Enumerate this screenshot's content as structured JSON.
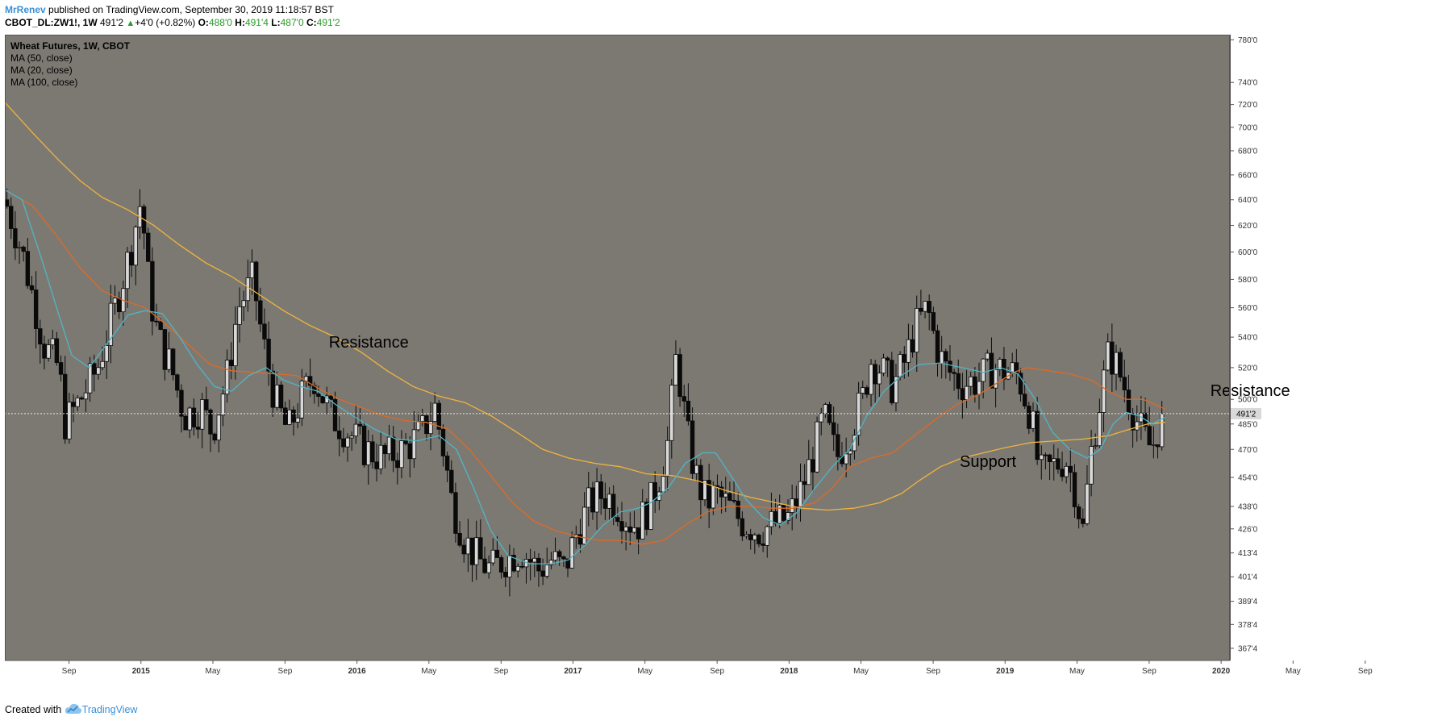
{
  "header": {
    "author": "MrRenev",
    "published_text": "published on TradingView.com, September 30, 2019 11:18:57 BST"
  },
  "quote": {
    "symbol": "CBOT_DL:ZW1!, 1W",
    "price": "491'2",
    "change": "+4'0 (+0.82%)",
    "o_label": "O:",
    "o": "488'0",
    "h_label": "H:",
    "h": "491'4",
    "l_label": "L:",
    "l": "487'0",
    "c_label": "C:",
    "c": "491'2"
  },
  "legend": {
    "title": "Wheat Futures, 1W, CBOT",
    "items": [
      "MA (50, close)",
      "MA (20, close)",
      "MA (100, close)"
    ]
  },
  "footer": {
    "created_with": "Created with",
    "brand": "TradingView"
  },
  "colors": {
    "plot_bg": "#7c7973",
    "candle_up": "#d8d8d8",
    "candle_down": "#0a0a0a",
    "ma20": "#4fb6c6",
    "ma50": "#e06a22",
    "ma100": "#f0b43c",
    "price_line": "#e8e8e8",
    "brand": "#3a8fd6",
    "up_text": "#2a9a2a"
  },
  "chart_data": {
    "type": "candlestick",
    "title": "Wheat Futures, 1W, CBOT",
    "interval": "1W",
    "last_price": 491.25,
    "last_price_label": "491'2",
    "y_scale": "log",
    "ylim": [
      362,
      785
    ],
    "y_ticks": [
      {
        "v": 780,
        "label": "780'0"
      },
      {
        "v": 740,
        "label": "740'0"
      },
      {
        "v": 720,
        "label": "720'0"
      },
      {
        "v": 700,
        "label": "700'0"
      },
      {
        "v": 680,
        "label": "680'0"
      },
      {
        "v": 660,
        "label": "660'0"
      },
      {
        "v": 640,
        "label": "640'0"
      },
      {
        "v": 620,
        "label": "620'0"
      },
      {
        "v": 600,
        "label": "600'0"
      },
      {
        "v": 580,
        "label": "580'0"
      },
      {
        "v": 560,
        "label": "560'0"
      },
      {
        "v": 540,
        "label": "540'0"
      },
      {
        "v": 520,
        "label": "520'0"
      },
      {
        "v": 500,
        "label": "500'0"
      },
      {
        "v": 485,
        "label": "485'0"
      },
      {
        "v": 470,
        "label": "470'0"
      },
      {
        "v": 454,
        "label": "454'0"
      },
      {
        "v": 438,
        "label": "438'0"
      },
      {
        "v": 426,
        "label": "426'0"
      },
      {
        "v": 413.5,
        "label": "413'4"
      },
      {
        "v": 401.5,
        "label": "401'4"
      },
      {
        "v": 389.5,
        "label": "389'4"
      },
      {
        "v": 378.5,
        "label": "378'4"
      },
      {
        "v": 367.5,
        "label": "367'4"
      }
    ],
    "x_ticks": [
      {
        "t": 2014.667,
        "label": "Sep",
        "bold": false
      },
      {
        "t": 2015.0,
        "label": "2015",
        "bold": true
      },
      {
        "t": 2015.333,
        "label": "May",
        "bold": false
      },
      {
        "t": 2015.667,
        "label": "Sep",
        "bold": false
      },
      {
        "t": 2016.0,
        "label": "2016",
        "bold": true
      },
      {
        "t": 2016.333,
        "label": "May",
        "bold": false
      },
      {
        "t": 2016.667,
        "label": "Sep",
        "bold": false
      },
      {
        "t": 2017.0,
        "label": "2017",
        "bold": true
      },
      {
        "t": 2017.333,
        "label": "May",
        "bold": false
      },
      {
        "t": 2017.667,
        "label": "Sep",
        "bold": false
      },
      {
        "t": 2018.0,
        "label": "2018",
        "bold": true
      },
      {
        "t": 2018.333,
        "label": "May",
        "bold": false
      },
      {
        "t": 2018.667,
        "label": "Sep",
        "bold": false
      },
      {
        "t": 2019.0,
        "label": "2019",
        "bold": true
      },
      {
        "t": 2019.333,
        "label": "May",
        "bold": false
      },
      {
        "t": 2019.667,
        "label": "Sep",
        "bold": false
      },
      {
        "t": 2020.0,
        "label": "2020",
        "bold": true
      },
      {
        "t": 2020.333,
        "label": "May",
        "bold": false
      },
      {
        "t": 2020.667,
        "label": "Sep",
        "bold": false
      }
    ],
    "xlim": [
      2014.37,
      2021.0
    ],
    "price_path": [
      [
        2014.37,
        640
      ],
      [
        2014.45,
        600
      ],
      [
        2014.55,
        535
      ],
      [
        2014.62,
        520
      ],
      [
        2014.65,
        485
      ],
      [
        2014.72,
        500
      ],
      [
        2014.8,
        520
      ],
      [
        2014.88,
        560
      ],
      [
        2014.95,
        600
      ],
      [
        2015.0,
        640
      ],
      [
        2015.04,
        570
      ],
      [
        2015.08,
        540
      ],
      [
        2015.14,
        520
      ],
      [
        2015.2,
        490
      ],
      [
        2015.28,
        495
      ],
      [
        2015.33,
        480
      ],
      [
        2015.4,
        515
      ],
      [
        2015.45,
        560
      ],
      [
        2015.52,
        580
      ],
      [
        2015.56,
        540
      ],
      [
        2015.62,
        500
      ],
      [
        2015.68,
        480
      ],
      [
        2015.74,
        500
      ],
      [
        2015.8,
        515
      ],
      [
        2015.88,
        490
      ],
      [
        2015.96,
        480
      ],
      [
        2016.04,
        470
      ],
      [
        2016.12,
        465
      ],
      [
        2016.22,
        470
      ],
      [
        2016.3,
        480
      ],
      [
        2016.36,
        495
      ],
      [
        2016.4,
        470
      ],
      [
        2016.44,
        440
      ],
      [
        2016.5,
        420
      ],
      [
        2016.56,
        410
      ],
      [
        2016.62,
        405
      ],
      [
        2016.68,
        410
      ],
      [
        2016.76,
        415
      ],
      [
        2016.84,
        405
      ],
      [
        2016.9,
        410
      ],
      [
        2016.96,
        405
      ],
      [
        2017.02,
        425
      ],
      [
        2017.08,
        440
      ],
      [
        2017.14,
        445
      ],
      [
        2017.2,
        440
      ],
      [
        2017.26,
        430
      ],
      [
        2017.3,
        428
      ],
      [
        2017.36,
        440
      ],
      [
        2017.4,
        455
      ],
      [
        2017.44,
        475
      ],
      [
        2017.48,
        530
      ],
      [
        2017.5,
        505
      ],
      [
        2017.54,
        470
      ],
      [
        2017.58,
        450
      ],
      [
        2017.62,
        440
      ],
      [
        2017.66,
        445
      ],
      [
        2017.72,
        438
      ],
      [
        2017.78,
        430
      ],
      [
        2017.86,
        425
      ],
      [
        2017.92,
        428
      ],
      [
        2018.0,
        432
      ],
      [
        2018.06,
        448
      ],
      [
        2018.12,
        470
      ],
      [
        2018.16,
        490
      ],
      [
        2018.22,
        465
      ],
      [
        2018.28,
        480
      ],
      [
        2018.34,
        500
      ],
      [
        2018.38,
        525
      ],
      [
        2018.42,
        520
      ],
      [
        2018.48,
        508
      ],
      [
        2018.54,
        525
      ],
      [
        2018.58,
        545
      ],
      [
        2018.64,
        560
      ],
      [
        2018.68,
        535
      ],
      [
        2018.72,
        520
      ],
      [
        2018.8,
        510
      ],
      [
        2018.88,
        512
      ],
      [
        2018.94,
        520
      ],
      [
        2019.0,
        518
      ],
      [
        2019.06,
        515
      ],
      [
        2019.12,
        490
      ],
      [
        2019.16,
        455
      ],
      [
        2019.22,
        460
      ],
      [
        2019.28,
        465
      ],
      [
        2019.32,
        450
      ],
      [
        2019.36,
        425
      ],
      [
        2019.4,
        470
      ],
      [
        2019.44,
        500
      ],
      [
        2019.48,
        530
      ],
      [
        2019.52,
        520
      ],
      [
        2019.56,
        505
      ],
      [
        2019.6,
        490
      ],
      [
        2019.64,
        478
      ],
      [
        2019.68,
        470
      ],
      [
        2019.7,
        480
      ],
      [
        2019.74,
        491.25
      ]
    ],
    "ma20_path": [
      [
        2014.37,
        648
      ],
      [
        2014.45,
        640
      ],
      [
        2014.55,
        590
      ],
      [
        2014.62,
        555
      ],
      [
        2014.68,
        528
      ],
      [
        2014.76,
        520
      ],
      [
        2014.84,
        535
      ],
      [
        2014.94,
        555
      ],
      [
        2015.02,
        558
      ],
      [
        2015.1,
        556
      ],
      [
        2015.18,
        540
      ],
      [
        2015.26,
        522
      ],
      [
        2015.34,
        508
      ],
      [
        2015.42,
        505
      ],
      [
        2015.5,
        515
      ],
      [
        2015.58,
        520
      ],
      [
        2015.66,
        512
      ],
      [
        2015.74,
        508
      ],
      [
        2015.82,
        505
      ],
      [
        2015.9,
        497
      ],
      [
        2015.98,
        490
      ],
      [
        2016.08,
        482
      ],
      [
        2016.18,
        476
      ],
      [
        2016.28,
        475
      ],
      [
        2016.38,
        478
      ],
      [
        2016.46,
        470
      ],
      [
        2016.54,
        448
      ],
      [
        2016.62,
        425
      ],
      [
        2016.7,
        412
      ],
      [
        2016.8,
        408
      ],
      [
        2016.9,
        408
      ],
      [
        2016.98,
        410
      ],
      [
        2017.06,
        418
      ],
      [
        2017.14,
        428
      ],
      [
        2017.22,
        435
      ],
      [
        2017.3,
        437
      ],
      [
        2017.36,
        440
      ],
      [
        2017.44,
        448
      ],
      [
        2017.52,
        462
      ],
      [
        2017.6,
        468
      ],
      [
        2017.66,
        468
      ],
      [
        2017.72,
        457
      ],
      [
        2017.8,
        442
      ],
      [
        2017.88,
        432
      ],
      [
        2017.96,
        428
      ],
      [
        2018.04,
        435
      ],
      [
        2018.12,
        448
      ],
      [
        2018.2,
        460
      ],
      [
        2018.28,
        470
      ],
      [
        2018.36,
        490
      ],
      [
        2018.44,
        505
      ],
      [
        2018.52,
        515
      ],
      [
        2018.6,
        522
      ],
      [
        2018.7,
        523
      ],
      [
        2018.8,
        520
      ],
      [
        2018.9,
        517
      ],
      [
        2018.98,
        520
      ],
      [
        2019.06,
        516
      ],
      [
        2019.14,
        500
      ],
      [
        2019.22,
        480
      ],
      [
        2019.3,
        470
      ],
      [
        2019.38,
        465
      ],
      [
        2019.44,
        470
      ],
      [
        2019.5,
        485
      ],
      [
        2019.56,
        492
      ],
      [
        2019.62,
        490
      ],
      [
        2019.68,
        485
      ],
      [
        2019.74,
        489
      ]
    ],
    "ma50_path": [
      [
        2014.37,
        648
      ],
      [
        2014.5,
        635
      ],
      [
        2014.62,
        610
      ],
      [
        2014.72,
        588
      ],
      [
        2014.82,
        572
      ],
      [
        2014.92,
        565
      ],
      [
        2015.02,
        560
      ],
      [
        2015.12,
        548
      ],
      [
        2015.22,
        535
      ],
      [
        2015.32,
        522
      ],
      [
        2015.42,
        518
      ],
      [
        2015.52,
        517
      ],
      [
        2015.62,
        516
      ],
      [
        2015.72,
        515
      ],
      [
        2015.82,
        507
      ],
      [
        2015.92,
        500
      ],
      [
        2016.02,
        495
      ],
      [
        2016.12,
        490
      ],
      [
        2016.22,
        487
      ],
      [
        2016.32,
        486
      ],
      [
        2016.42,
        482
      ],
      [
        2016.52,
        470
      ],
      [
        2016.62,
        455
      ],
      [
        2016.72,
        440
      ],
      [
        2016.82,
        430
      ],
      [
        2016.92,
        425
      ],
      [
        2017.02,
        422
      ],
      [
        2017.12,
        420
      ],
      [
        2017.22,
        420
      ],
      [
        2017.32,
        418
      ],
      [
        2017.42,
        420
      ],
      [
        2017.52,
        428
      ],
      [
        2017.62,
        435
      ],
      [
        2017.72,
        438
      ],
      [
        2017.82,
        438
      ],
      [
        2017.92,
        437
      ],
      [
        2018.02,
        437
      ],
      [
        2018.12,
        440
      ],
      [
        2018.2,
        448
      ],
      [
        2018.28,
        460
      ],
      [
        2018.38,
        465
      ],
      [
        2018.48,
        468
      ],
      [
        2018.58,
        478
      ],
      [
        2018.68,
        488
      ],
      [
        2018.78,
        497
      ],
      [
        2018.88,
        503
      ],
      [
        2018.96,
        510
      ],
      [
        2019.04,
        517
      ],
      [
        2019.1,
        520
      ],
      [
        2019.2,
        518
      ],
      [
        2019.3,
        516
      ],
      [
        2019.4,
        512
      ],
      [
        2019.48,
        505
      ],
      [
        2019.56,
        500
      ],
      [
        2019.64,
        500
      ],
      [
        2019.74,
        494
      ]
    ],
    "ma100_path": [
      [
        2014.37,
        722
      ],
      [
        2014.5,
        695
      ],
      [
        2014.62,
        672
      ],
      [
        2014.72,
        655
      ],
      [
        2014.82,
        642
      ],
      [
        2014.94,
        632
      ],
      [
        2015.06,
        620
      ],
      [
        2015.18,
        605
      ],
      [
        2015.3,
        592
      ],
      [
        2015.42,
        582
      ],
      [
        2015.54,
        570
      ],
      [
        2015.66,
        558
      ],
      [
        2015.78,
        548
      ],
      [
        2015.9,
        540
      ],
      [
        2016.02,
        530
      ],
      [
        2016.14,
        518
      ],
      [
        2016.26,
        508
      ],
      [
        2016.38,
        502
      ],
      [
        2016.5,
        498
      ],
      [
        2016.62,
        490
      ],
      [
        2016.74,
        480
      ],
      [
        2016.86,
        470
      ],
      [
        2016.98,
        465
      ],
      [
        2017.1,
        462
      ],
      [
        2017.22,
        460
      ],
      [
        2017.34,
        456
      ],
      [
        2017.46,
        455
      ],
      [
        2017.58,
        452
      ],
      [
        2017.7,
        447
      ],
      [
        2017.82,
        443
      ],
      [
        2017.94,
        440
      ],
      [
        2018.06,
        437
      ],
      [
        2018.18,
        436
      ],
      [
        2018.3,
        437
      ],
      [
        2018.42,
        440
      ],
      [
        2018.52,
        445
      ],
      [
        2018.6,
        452
      ],
      [
        2018.7,
        460
      ],
      [
        2018.8,
        465
      ],
      [
        2018.9,
        468
      ],
      [
        2019.0,
        471
      ],
      [
        2019.12,
        474
      ],
      [
        2019.24,
        475
      ],
      [
        2019.36,
        476
      ],
      [
        2019.48,
        478
      ],
      [
        2019.58,
        482
      ],
      [
        2019.66,
        485
      ],
      [
        2019.74,
        486
      ]
    ],
    "annotations": [
      {
        "text": "Resistance",
        "t": 2015.87,
        "price": 533
      },
      {
        "text": "Support",
        "t": 2018.79,
        "price": 460
      },
      {
        "text": "Resistance",
        "t": 2019.95,
        "price": 502
      }
    ]
  }
}
